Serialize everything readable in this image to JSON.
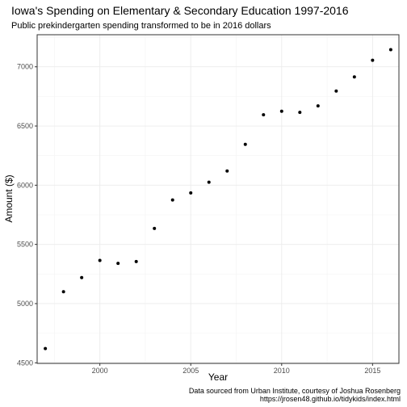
{
  "chart_data": {
    "type": "scatter",
    "title": "Iowa's Spending on Elementary & Secondary Education 1997-2016",
    "subtitle": "Public prekindergarten spending transformed to be in 2016 dollars",
    "xlabel": "Year",
    "ylabel": "Amount ($)",
    "caption_lines": [
      "Data sourced from Urban Institute, courtesy of Joshua Rosenberg",
      "https://jrosen48.github.io/tidykids/index.html"
    ],
    "x": [
      1997,
      1998,
      1999,
      2000,
      2001,
      2002,
      2003,
      2004,
      2005,
      2006,
      2007,
      2008,
      2009,
      2010,
      2011,
      2012,
      2013,
      2014,
      2015,
      2016
    ],
    "y": [
      4620,
      5100,
      5220,
      5365,
      5340,
      5355,
      5635,
      5875,
      5935,
      6025,
      6120,
      6345,
      6595,
      6625,
      6615,
      6670,
      6795,
      6915,
      7055,
      7145
    ],
    "xlim": [
      1996.55,
      2016.45
    ],
    "ylim": [
      4495,
      7271
    ],
    "x_ticks": [
      2000,
      2005,
      2010,
      2015
    ],
    "x_tick_labels": [
      "2000",
      "2005",
      "2010",
      "2015"
    ],
    "y_ticks": [
      4500,
      5000,
      5500,
      6000,
      6500,
      7000
    ],
    "y_tick_labels": [
      "4500",
      "5000",
      "5500",
      "6000",
      "6500",
      "7000"
    ],
    "grid": true,
    "legend": "none",
    "theme": "bw",
    "colors": {
      "point": "#000000",
      "grid": "#ebebeb",
      "border": "#333333"
    }
  }
}
